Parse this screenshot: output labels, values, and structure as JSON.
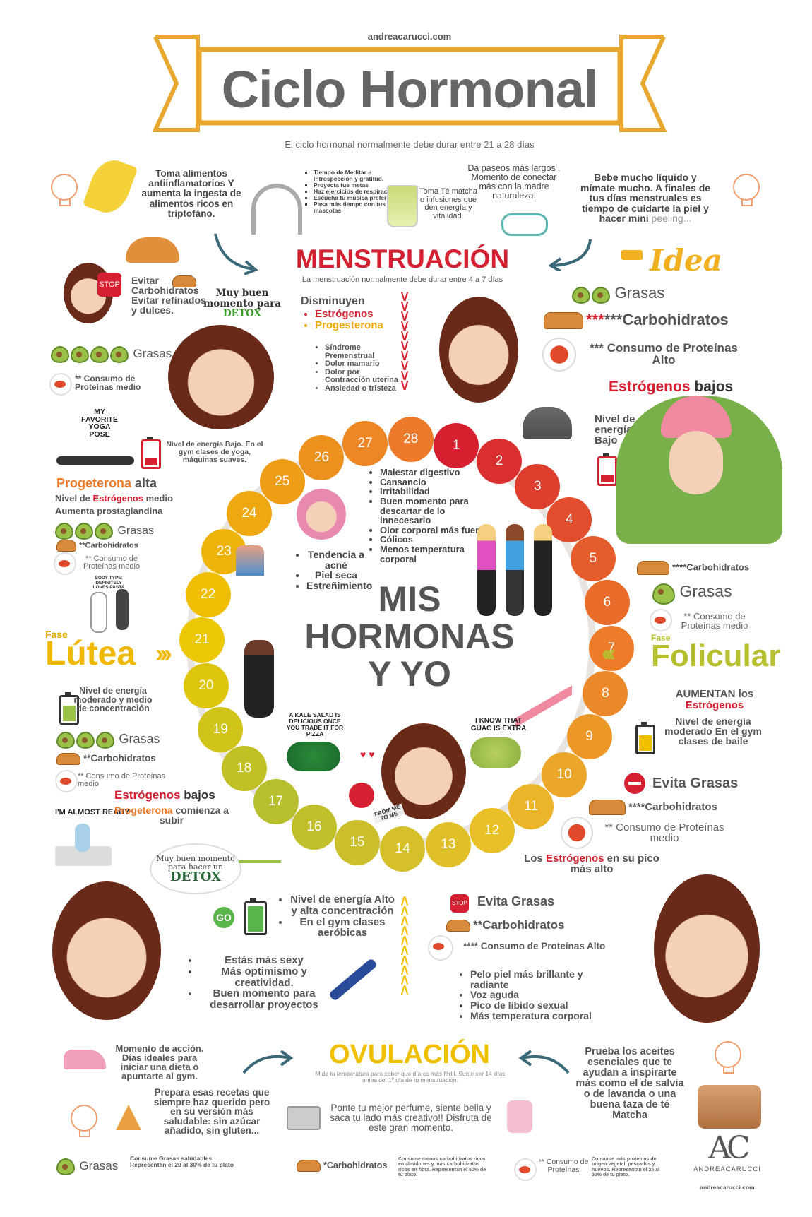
{
  "header": {
    "site": "andreacarucci.com",
    "title": "Ciclo Hormonal",
    "subtitle": "El ciclo hormonal normalmente debe durar entre 21 a 28 días"
  },
  "tips_top": {
    "banana": "Toma alimentos antiinflamatorios Y aumenta la ingesta de alimentos ricos en triptofáno.",
    "headphones": [
      "Tiempo de Meditar e introspección y gratitud.",
      "Proyecta tus metas",
      "Haz ejercicios de respiración",
      "Escucha tu música preferida",
      "Pasa más tiempo con tus mascotas"
    ],
    "tea": "Toma Té matcha o infusiones que den energía y vitalidad.",
    "walk": "Da paseos más largos . Momento de conectar más con la madre naturaleza.",
    "drink_a": "Bebe mucho líquido y mímate mucho. A finales de tus días menstruales es tiempo de cuidarte la piel y hacer mini ",
    "drink_b": "peeling..."
  },
  "menstruacion": {
    "title": "MENSTRUACIÓN",
    "subtitle": "La menstruación normalmente debe durar entre 4 a 7 días",
    "disminuyen": "Disminuyen",
    "hormones": [
      "Estrógenos",
      "Progesterona"
    ],
    "symptoms": [
      "Síndrome Premenstrual",
      "Dolor mamario",
      "Dolor por Contracción uterina",
      "Ansiedad o tristeza"
    ],
    "idea": "Idea",
    "grasas": "Grasas",
    "carbs": "***Carbohidratos",
    "protein": "*** Consumo de Proteínas Alto",
    "estrogenos": "Estrógenos",
    "bajos": " bajos",
    "energy": "Nivel de energía Bajo"
  },
  "left_top": {
    "stop": "STOP",
    "evitar": "Evitar Carbohidratos Evitar refinados y dulces.",
    "detox_a": "Muy buen momento para",
    "detox_b": "DETOX",
    "grasas": "Grasas",
    "protein": "** Consumo de Proteínas medio",
    "yoga": "MY FAVORITE YOGA POSE",
    "energy": "Nivel de energía Bajo. En el gym clases de yoga, máquinas suaves."
  },
  "lutea": {
    "prog": "Progeterona",
    "alta": " alta",
    "line2a": "Nivel de ",
    "line2b": "Estrógenos",
    "line2c": " medio",
    "line3": "Aumenta prostaglandina",
    "grasas": "Grasas",
    "carbs": "**Carbohidratos",
    "protein": "** Consumo de Proteínas medio",
    "mirror": "BODY TYPE: DEFINITELY LOVES PASTA",
    "fase": "Fase",
    "title": "Lútea",
    "energy": "Nivel de energía moderado y medio de concentración",
    "grasas2": "Grasas",
    "carbs2": "**Carbohidratos",
    "protein2": "** Consumo de Proteínas medio",
    "estrogenos": "Estrógenos",
    "bajos": " bajos",
    "ready": "I'M ALMOST READY",
    "prog2": "Progeterona",
    "prog2b": " comienza a subir"
  },
  "center": {
    "title": [
      "MIS",
      "HORMONAS",
      "Y YO"
    ],
    "symptoms": [
      "Malestar digestivo",
      "Cansancio",
      "Irritabilidad",
      "Buen momento para descartar de lo innecesario",
      "Olor corporal más fuerte",
      "Cólicos",
      "Menos temperatura corporal"
    ],
    "skin": [
      "Tendencia a acné",
      "Piel seca",
      "Estreñimiento"
    ],
    "salad": "A KALE SALAD IS DELICIOUS ONCE YOU TRADE IT FOR PIZZA",
    "guac": "I KNOW THAT GUAC IS EXTRA",
    "note": "FROM ME TO ME"
  },
  "cycle": {
    "days": [
      1,
      2,
      3,
      4,
      5,
      6,
      7,
      8,
      9,
      10,
      11,
      12,
      13,
      14,
      15,
      16,
      17,
      18,
      19,
      20,
      21,
      22,
      23,
      24,
      25,
      26,
      27,
      28
    ]
  },
  "folicular": {
    "carbs": "****Carbohidratos",
    "grasas": "Grasas",
    "protein": "** Consumo de Proteínas medio",
    "fase": "Fase",
    "title": "Folicular",
    "aumentan": "AUMENTAN los",
    "estrogenos": "Estrógenos",
    "energy": "Nivel de energía moderado En el gym clases de baile",
    "evita": "Evita Grasas",
    "carbs2": "****Carbohidratos",
    "protein2": "** Consumo de Proteínas medio",
    "peak_a": "Los ",
    "peak_b": "Estrógenos",
    "peak_c": " en su pico más alto"
  },
  "ovulacion": {
    "detox_a": "Muy buen momento para hacer un",
    "detox_b": "DETOX",
    "go": "GO",
    "energy": [
      "Nivel de energía Alto y alta concentración",
      "En el gym clases aeróbicas"
    ],
    "sexy": [
      "Estás más sexy",
      "Más optimismo y creatividad.",
      "Buen momento para desarrollar proyectos"
    ],
    "stop": "STOP",
    "evita": "Evita Grasas",
    "carbs": "**Carbohidratos",
    "protein": "**** Consumo de Proteínas Alto",
    "body": [
      "Pelo piel más brillante y radiante",
      "Voz aguda",
      "Pico de libido sexual",
      "Más temperatura corporal"
    ],
    "title": "OVULACIÓN",
    "subtitle": "Mide tu temperatura para saber que día es más fértil. Suele ser 14 días antes del 1º día de tu menstruación."
  },
  "bottom": {
    "shoes": "Momento de acción. Días ideales para iniciar una dieta o apuntarte al gym.",
    "recipes": "Prepara esas recetas que siempre haz querido pero en su versión más saludable: sin azúcar añadido, sin gluten...",
    "camera": "Ponte tu mejor perfume, siente bella y saca tu lado más creativo!! Disfruta de este gran momento.",
    "oils": "Prueba los aceites esenciales que te ayudan a inspirarte más como el de salvia o de lavanda o una buena taza de té Matcha"
  },
  "legend": {
    "grasas": "Grasas",
    "grasas_note": "Consume Grasas saludables. Representan el 20 al 30% de tu plato",
    "carbs": "*Carbohidratos",
    "carbs_note": "Consume menos carbohidratos ricos en almidones y más carbohidratos ricos en fibra. Representan el 50% de tu plato.",
    "protein": "** Consumo de Proteínas",
    "protein_note": "Consume más proteínas de origen vegetal, pescados y huevos. Representan el 25 al 30% de tu plato.",
    "brand": "ANDREACARUCCI",
    "brand_url": "andreacarucci.com",
    "logo": "AC"
  },
  "colors": {
    "red": "#d42030",
    "gold": "#f0c000",
    "orange": "#ec7a2a",
    "olive": "#b6bf2e"
  }
}
